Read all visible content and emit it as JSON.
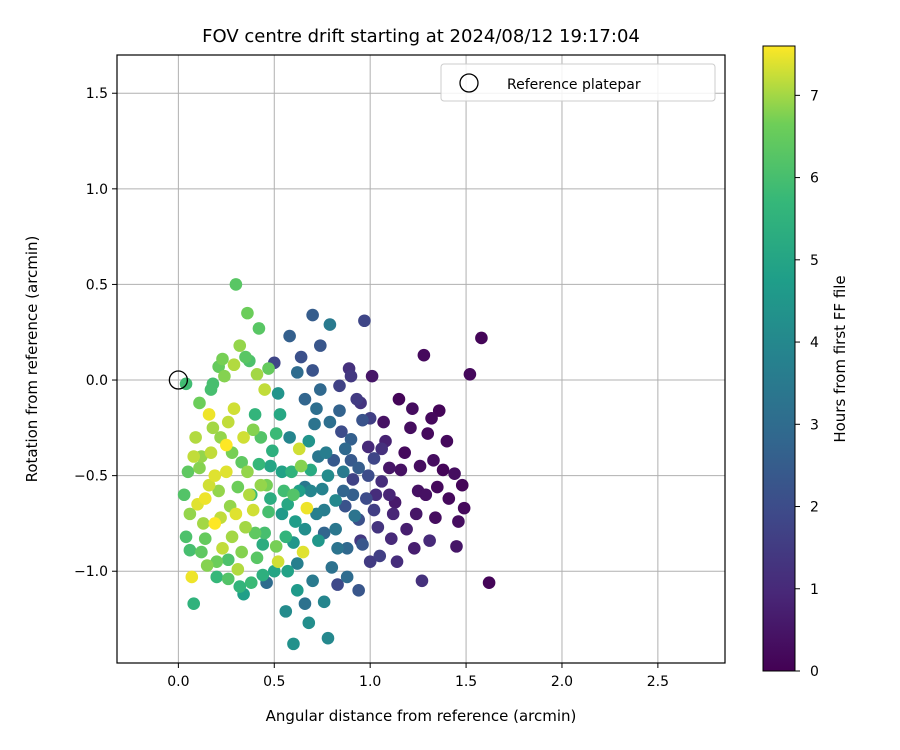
{
  "chart_data": {
    "type": "scatter",
    "title": "FOV centre drift starting at 2024/08/12 19:17:04",
    "xlabel": "Angular distance from reference (arcmin)",
    "ylabel": "Rotation from reference (arcmin)",
    "xlim": [
      -0.32,
      2.85
    ],
    "ylim": [
      -1.48,
      1.7
    ],
    "xticks": [
      0.0,
      0.5,
      1.0,
      1.5,
      2.0,
      2.5
    ],
    "yticks": [
      -1.0,
      -0.5,
      0.0,
      0.5,
      1.0,
      1.5
    ],
    "xtick_labels": [
      "0.0",
      "0.5",
      "1.0",
      "1.5",
      "2.0",
      "2.5"
    ],
    "ytick_labels": [
      "−1.0",
      "−0.5",
      "0.0",
      "0.5",
      "1.0",
      "1.5"
    ],
    "grid": true,
    "legend": {
      "position": "top-right",
      "label": "Reference platepar"
    },
    "reference_point": {
      "x": 0.0,
      "y": 0.0
    },
    "colorbar": {
      "label": "Hours from first FF file",
      "range": [
        0,
        7.6
      ],
      "ticks": [
        0,
        1,
        2,
        3,
        4,
        5,
        6,
        7
      ],
      "tick_labels": [
        "0",
        "1",
        "2",
        "3",
        "4",
        "5",
        "6",
        "7"
      ],
      "colormap": "viridis"
    },
    "points": [
      {
        "x": 1.58,
        "y": 0.22,
        "c": 0.1
      },
      {
        "x": 1.62,
        "y": -1.06,
        "c": 0.1
      },
      {
        "x": 1.52,
        "y": 0.03,
        "c": 0.2
      },
      {
        "x": 1.28,
        "y": 0.13,
        "c": 0.2
      },
      {
        "x": 1.48,
        "y": -0.55,
        "c": 0.1
      },
      {
        "x": 1.49,
        "y": -0.67,
        "c": 0.2
      },
      {
        "x": 1.46,
        "y": -0.74,
        "c": 0.3
      },
      {
        "x": 1.45,
        "y": -0.87,
        "c": 0.5
      },
      {
        "x": 1.44,
        "y": -0.49,
        "c": 0.3
      },
      {
        "x": 1.4,
        "y": -0.32,
        "c": 0.2
      },
      {
        "x": 1.36,
        "y": -0.16,
        "c": 0.1
      },
      {
        "x": 1.33,
        "y": -0.42,
        "c": 0.3
      },
      {
        "x": 1.3,
        "y": -0.28,
        "c": 0.2
      },
      {
        "x": 1.27,
        "y": -1.05,
        "c": 1.2
      },
      {
        "x": 1.31,
        "y": -0.84,
        "c": 1.0
      },
      {
        "x": 1.25,
        "y": -0.58,
        "c": 0.4
      },
      {
        "x": 1.22,
        "y": -0.15,
        "c": 0.3
      },
      {
        "x": 1.18,
        "y": -0.38,
        "c": 0.2
      },
      {
        "x": 1.15,
        "y": -0.1,
        "c": 0.1
      },
      {
        "x": 1.12,
        "y": -0.7,
        "c": 0.9
      },
      {
        "x": 1.1,
        "y": -0.46,
        "c": 0.5
      },
      {
        "x": 1.07,
        "y": -0.22,
        "c": 0.4
      },
      {
        "x": 1.05,
        "y": -0.92,
        "c": 1.6
      },
      {
        "x": 1.03,
        "y": -0.6,
        "c": 1.1
      },
      {
        "x": 1.01,
        "y": 0.02,
        "c": 0.5
      },
      {
        "x": 0.99,
        "y": -0.35,
        "c": 1.0
      },
      {
        "x": 0.97,
        "y": 0.31,
        "c": 1.8
      },
      {
        "x": 0.95,
        "y": -0.84,
        "c": 1.4
      },
      {
        "x": 0.93,
        "y": -0.1,
        "c": 1.5
      },
      {
        "x": 0.91,
        "y": -0.52,
        "c": 1.7
      },
      {
        "x": 0.89,
        "y": 0.06,
        "c": 1.2
      },
      {
        "x": 0.87,
        "y": -0.66,
        "c": 2.2
      },
      {
        "x": 0.85,
        "y": -0.27,
        "c": 2.0
      },
      {
        "x": 0.83,
        "y": -1.07,
        "c": 1.9
      },
      {
        "x": 0.81,
        "y": -0.42,
        "c": 2.4
      },
      {
        "x": 0.79,
        "y": 0.29,
        "c": 3.5
      },
      {
        "x": 0.78,
        "y": -1.35,
        "c": 4.0
      },
      {
        "x": 0.76,
        "y": -0.8,
        "c": 2.8
      },
      {
        "x": 0.74,
        "y": 0.18,
        "c": 2.3
      },
      {
        "x": 0.72,
        "y": -0.15,
        "c": 3.1
      },
      {
        "x": 0.7,
        "y": 0.34,
        "c": 2.5
      },
      {
        "x": 0.68,
        "y": -1.27,
        "c": 4.2
      },
      {
        "x": 0.66,
        "y": -0.56,
        "c": 3.4
      },
      {
        "x": 0.64,
        "y": 0.12,
        "c": 2.1
      },
      {
        "x": 0.62,
        "y": -0.96,
        "c": 3.7
      },
      {
        "x": 0.6,
        "y": -1.38,
        "c": 4.3
      },
      {
        "x": 0.58,
        "y": -0.3,
        "c": 3.9
      },
      {
        "x": 0.56,
        "y": -1.21,
        "c": 4.1
      },
      {
        "x": 0.54,
        "y": -0.7,
        "c": 4.6
      },
      {
        "x": 0.52,
        "y": -0.07,
        "c": 4.4
      },
      {
        "x": 0.5,
        "y": 0.09,
        "c": 1.8
      },
      {
        "x": 0.48,
        "y": -0.45,
        "c": 5.0
      },
      {
        "x": 0.46,
        "y": -1.06,
        "c": 3.0
      },
      {
        "x": 0.44,
        "y": -0.86,
        "c": 5.3
      },
      {
        "x": 0.42,
        "y": 0.27,
        "c": 6.3
      },
      {
        "x": 0.4,
        "y": -0.18,
        "c": 5.6
      },
      {
        "x": 0.38,
        "y": -0.6,
        "c": 5.8
      },
      {
        "x": 0.36,
        "y": 0.35,
        "c": 6.6
      },
      {
        "x": 0.34,
        "y": -1.12,
        "c": 4.8
      },
      {
        "x": 0.32,
        "y": 0.18,
        "c": 6.9
      },
      {
        "x": 0.3,
        "y": 0.5,
        "c": 6.3
      },
      {
        "x": 0.28,
        "y": -0.38,
        "c": 6.7
      },
      {
        "x": 0.26,
        "y": -0.94,
        "c": 6.1
      },
      {
        "x": 0.24,
        "y": 0.02,
        "c": 6.8
      },
      {
        "x": 0.22,
        "y": -0.72,
        "c": 7.2
      },
      {
        "x": 0.2,
        "y": -1.03,
        "c": 5.7
      },
      {
        "x": 0.18,
        "y": -0.25,
        "c": 7.0
      },
      {
        "x": 0.16,
        "y": -0.55,
        "c": 7.3
      },
      {
        "x": 0.14,
        "y": -0.83,
        "c": 6.5
      },
      {
        "x": 0.12,
        "y": -0.4,
        "c": 6.9
      },
      {
        "x": 0.1,
        "y": -0.65,
        "c": 7.4
      },
      {
        "x": 0.08,
        "y": -1.17,
        "c": 5.5
      },
      {
        "x": 0.06,
        "y": -0.89,
        "c": 6.0
      },
      {
        "x": 0.05,
        "y": -0.48,
        "c": 6.4
      },
      {
        "x": 0.04,
        "y": -0.02,
        "c": 5.9
      },
      {
        "x": 0.03,
        "y": -0.6,
        "c": 6.2
      },
      {
        "x": 0.07,
        "y": -1.03,
        "c": 7.5
      },
      {
        "x": 0.09,
        "y": -0.3,
        "c": 7.1
      },
      {
        "x": 0.11,
        "y": -0.12,
        "c": 6.6
      },
      {
        "x": 0.13,
        "y": -0.75,
        "c": 7.0
      },
      {
        "x": 0.15,
        "y": -0.97,
        "c": 6.8
      },
      {
        "x": 0.17,
        "y": -0.05,
        "c": 6.0
      },
      {
        "x": 0.19,
        "y": -0.5,
        "c": 7.4
      },
      {
        "x": 0.21,
        "y": 0.07,
        "c": 6.5
      },
      {
        "x": 0.23,
        "y": -0.88,
        "c": 7.2
      },
      {
        "x": 0.25,
        "y": -0.34,
        "c": 7.6
      },
      {
        "x": 0.27,
        "y": -0.66,
        "c": 6.9
      },
      {
        "x": 0.29,
        "y": -0.15,
        "c": 7.3
      },
      {
        "x": 0.31,
        "y": -0.99,
        "c": 7.1
      },
      {
        "x": 0.33,
        "y": -0.43,
        "c": 6.4
      },
      {
        "x": 0.35,
        "y": -0.77,
        "c": 7.0
      },
      {
        "x": 0.37,
        "y": 0.1,
        "c": 6.1
      },
      {
        "x": 0.39,
        "y": -0.26,
        "c": 6.8
      },
      {
        "x": 0.41,
        "y": -0.93,
        "c": 6.3
      },
      {
        "x": 0.43,
        "y": -0.55,
        "c": 6.9
      },
      {
        "x": 0.45,
        "y": -0.05,
        "c": 7.2
      },
      {
        "x": 0.47,
        "y": -0.69,
        "c": 6.0
      },
      {
        "x": 0.49,
        "y": -0.37,
        "c": 5.4
      },
      {
        "x": 0.51,
        "y": -0.87,
        "c": 6.7
      },
      {
        "x": 0.53,
        "y": -0.18,
        "c": 5.1
      },
      {
        "x": 0.55,
        "y": -0.58,
        "c": 5.9
      },
      {
        "x": 0.57,
        "y": -1.0,
        "c": 4.9
      },
      {
        "x": 0.59,
        "y": -0.48,
        "c": 5.5
      },
      {
        "x": 0.61,
        "y": -0.74,
        "c": 4.7
      },
      {
        "x": 0.63,
        "y": -0.36,
        "c": 7.3
      },
      {
        "x": 0.65,
        "y": -0.9,
        "c": 7.4
      },
      {
        "x": 0.67,
        "y": -0.67,
        "c": 7.5
      },
      {
        "x": 0.69,
        "y": -0.47,
        "c": 5.2
      },
      {
        "x": 0.71,
        "y": -0.23,
        "c": 3.3
      },
      {
        "x": 0.73,
        "y": -0.84,
        "c": 4.5
      },
      {
        "x": 0.75,
        "y": -0.57,
        "c": 3.8
      },
      {
        "x": 0.77,
        "y": -0.38,
        "c": 3.6
      },
      {
        "x": 0.8,
        "y": -0.98,
        "c": 3.2
      },
      {
        "x": 0.82,
        "y": -0.63,
        "c": 4.0
      },
      {
        "x": 0.84,
        "y": -0.16,
        "c": 2.7
      },
      {
        "x": 0.86,
        "y": -0.48,
        "c": 3.5
      },
      {
        "x": 0.88,
        "y": -0.88,
        "c": 2.9
      },
      {
        "x": 0.9,
        "y": -0.31,
        "c": 2.6
      },
      {
        "x": 0.92,
        "y": -0.71,
        "c": 3.3
      },
      {
        "x": 0.94,
        "y": -0.46,
        "c": 2.5
      },
      {
        "x": 0.96,
        "y": -0.21,
        "c": 2.2
      },
      {
        "x": 0.98,
        "y": -0.62,
        "c": 2.0
      },
      {
        "x": 1.0,
        "y": -0.95,
        "c": 1.5
      },
      {
        "x": 1.02,
        "y": -0.41,
        "c": 1.8
      },
      {
        "x": 1.04,
        "y": -0.77,
        "c": 1.3
      },
      {
        "x": 1.06,
        "y": -0.53,
        "c": 1.1
      },
      {
        "x": 1.08,
        "y": -0.32,
        "c": 0.8
      },
      {
        "x": 1.11,
        "y": -0.83,
        "c": 1.0
      },
      {
        "x": 1.13,
        "y": -0.64,
        "c": 0.6
      },
      {
        "x": 1.16,
        "y": -0.47,
        "c": 0.4
      },
      {
        "x": 1.19,
        "y": -0.78,
        "c": 0.7
      },
      {
        "x": 1.21,
        "y": -0.25,
        "c": 0.3
      },
      {
        "x": 1.24,
        "y": -0.7,
        "c": 0.5
      },
      {
        "x": 1.26,
        "y": -0.45,
        "c": 0.3
      },
      {
        "x": 1.29,
        "y": -0.6,
        "c": 0.4
      },
      {
        "x": 1.32,
        "y": -0.2,
        "c": 0.2
      },
      {
        "x": 1.35,
        "y": -0.56,
        "c": 0.2
      },
      {
        "x": 1.38,
        "y": -0.47,
        "c": 0.1
      },
      {
        "x": 1.41,
        "y": -0.62,
        "c": 0.2
      },
      {
        "x": 1.34,
        "y": -0.72,
        "c": 0.3
      },
      {
        "x": 1.23,
        "y": -0.88,
        "c": 0.7
      },
      {
        "x": 1.14,
        "y": -0.95,
        "c": 1.1
      },
      {
        "x": 0.94,
        "y": -1.1,
        "c": 2.3
      },
      {
        "x": 0.88,
        "y": -1.03,
        "c": 3.0
      },
      {
        "x": 0.76,
        "y": -1.16,
        "c": 3.9
      },
      {
        "x": 0.7,
        "y": -1.05,
        "c": 3.5
      },
      {
        "x": 0.66,
        "y": -1.17,
        "c": 3.2
      },
      {
        "x": 0.62,
        "y": -1.1,
        "c": 4.6
      },
      {
        "x": 0.5,
        "y": -1.0,
        "c": 5.0
      },
      {
        "x": 0.44,
        "y": -1.02,
        "c": 5.4
      },
      {
        "x": 0.38,
        "y": -1.06,
        "c": 5.8
      },
      {
        "x": 0.32,
        "y": -1.08,
        "c": 5.6
      },
      {
        "x": 0.26,
        "y": -1.04,
        "c": 6.2
      },
      {
        "x": 0.2,
        "y": -0.95,
        "c": 6.6
      },
      {
        "x": 0.58,
        "y": 0.23,
        "c": 2.6
      },
      {
        "x": 0.62,
        "y": 0.04,
        "c": 3.0
      },
      {
        "x": 0.66,
        "y": -0.1,
        "c": 2.8
      },
      {
        "x": 0.7,
        "y": 0.05,
        "c": 2.2
      },
      {
        "x": 0.74,
        "y": -0.05,
        "c": 2.9
      },
      {
        "x": 0.84,
        "y": -0.03,
        "c": 1.7
      },
      {
        "x": 0.9,
        "y": 0.02,
        "c": 1.4
      },
      {
        "x": 0.95,
        "y": -0.12,
        "c": 1.3
      },
      {
        "x": 1.0,
        "y": -0.2,
        "c": 1.6
      },
      {
        "x": 0.47,
        "y": 0.06,
        "c": 6.5
      },
      {
        "x": 0.41,
        "y": 0.03,
        "c": 7.0
      },
      {
        "x": 0.35,
        "y": 0.12,
        "c": 6.3
      },
      {
        "x": 0.29,
        "y": 0.08,
        "c": 7.1
      },
      {
        "x": 0.23,
        "y": 0.11,
        "c": 6.7
      },
      {
        "x": 0.18,
        "y": -0.02,
        "c": 6.0
      },
      {
        "x": 0.52,
        "y": -0.95,
        "c": 7.3
      },
      {
        "x": 0.56,
        "y": -0.82,
        "c": 5.6
      },
      {
        "x": 0.6,
        "y": -0.6,
        "c": 6.2
      },
      {
        "x": 0.64,
        "y": -0.45,
        "c": 6.8
      },
      {
        "x": 0.68,
        "y": -0.32,
        "c": 4.4
      },
      {
        "x": 0.72,
        "y": -0.7,
        "c": 3.7
      },
      {
        "x": 0.78,
        "y": -0.5,
        "c": 4.1
      },
      {
        "x": 0.82,
        "y": -0.78,
        "c": 3.4
      },
      {
        "x": 0.86,
        "y": -0.58,
        "c": 2.8
      },
      {
        "x": 0.9,
        "y": -0.42,
        "c": 2.4
      },
      {
        "x": 0.94,
        "y": -0.73,
        "c": 2.1
      },
      {
        "x": 1.02,
        "y": -0.68,
        "c": 1.6
      },
      {
        "x": 1.06,
        "y": -0.36,
        "c": 1.2
      },
      {
        "x": 1.1,
        "y": -0.6,
        "c": 0.9
      },
      {
        "x": 0.11,
        "y": -0.46,
        "c": 6.8
      },
      {
        "x": 0.14,
        "y": -0.62,
        "c": 7.5
      },
      {
        "x": 0.17,
        "y": -0.38,
        "c": 7.2
      },
      {
        "x": 0.21,
        "y": -0.58,
        "c": 6.9
      },
      {
        "x": 0.25,
        "y": -0.48,
        "c": 7.4
      },
      {
        "x": 0.28,
        "y": -0.82,
        "c": 7.0
      },
      {
        "x": 0.31,
        "y": -0.56,
        "c": 6.6
      },
      {
        "x": 0.34,
        "y": -0.3,
        "c": 7.3
      },
      {
        "x": 0.37,
        "y": -0.6,
        "c": 7.1
      },
      {
        "x": 0.4,
        "y": -0.8,
        "c": 6.4
      },
      {
        "x": 0.43,
        "y": -0.3,
        "c": 6.2
      },
      {
        "x": 0.46,
        "y": -0.55,
        "c": 6.7
      },
      {
        "x": 0.06,
        "y": -0.7,
        "c": 6.9
      },
      {
        "x": 0.08,
        "y": -0.4,
        "c": 7.2
      },
      {
        "x": 0.04,
        "y": -0.82,
        "c": 6.1
      },
      {
        "x": 0.12,
        "y": -0.9,
        "c": 6.4
      },
      {
        "x": 0.16,
        "y": -0.18,
        "c": 7.5
      },
      {
        "x": 0.19,
        "y": -0.75,
        "c": 7.6
      },
      {
        "x": 0.22,
        "y": -0.3,
        "c": 6.9
      },
      {
        "x": 0.26,
        "y": -0.22,
        "c": 7.2
      },
      {
        "x": 0.3,
        "y": -0.7,
        "c": 7.4
      },
      {
        "x": 0.33,
        "y": -0.9,
        "c": 6.8
      },
      {
        "x": 0.36,
        "y": -0.48,
        "c": 6.9
      },
      {
        "x": 0.39,
        "y": -0.68,
        "c": 7.3
      },
      {
        "x": 0.42,
        "y": -0.44,
        "c": 5.7
      },
      {
        "x": 0.45,
        "y": -0.8,
        "c": 6.0
      },
      {
        "x": 0.48,
        "y": -0.62,
        "c": 5.3
      },
      {
        "x": 0.51,
        "y": -0.28,
        "c": 5.8
      },
      {
        "x": 0.54,
        "y": -0.48,
        "c": 4.9
      },
      {
        "x": 0.57,
        "y": -0.65,
        "c": 5.1
      },
      {
        "x": 0.6,
        "y": -0.85,
        "c": 4.5
      },
      {
        "x": 0.63,
        "y": -0.58,
        "c": 4.8
      },
      {
        "x": 0.66,
        "y": -0.78,
        "c": 4.2
      },
      {
        "x": 0.69,
        "y": -0.58,
        "c": 3.9
      },
      {
        "x": 0.73,
        "y": -0.4,
        "c": 3.4
      },
      {
        "x": 0.76,
        "y": -0.68,
        "c": 3.6
      },
      {
        "x": 0.79,
        "y": -0.22,
        "c": 3.1
      },
      {
        "x": 0.83,
        "y": -0.88,
        "c": 3.3
      },
      {
        "x": 0.87,
        "y": -0.36,
        "c": 2.9
      },
      {
        "x": 0.91,
        "y": -0.6,
        "c": 2.6
      },
      {
        "x": 0.96,
        "y": -0.86,
        "c": 2.3
      },
      {
        "x": 0.99,
        "y": -0.5,
        "c": 2.0
      }
    ]
  }
}
